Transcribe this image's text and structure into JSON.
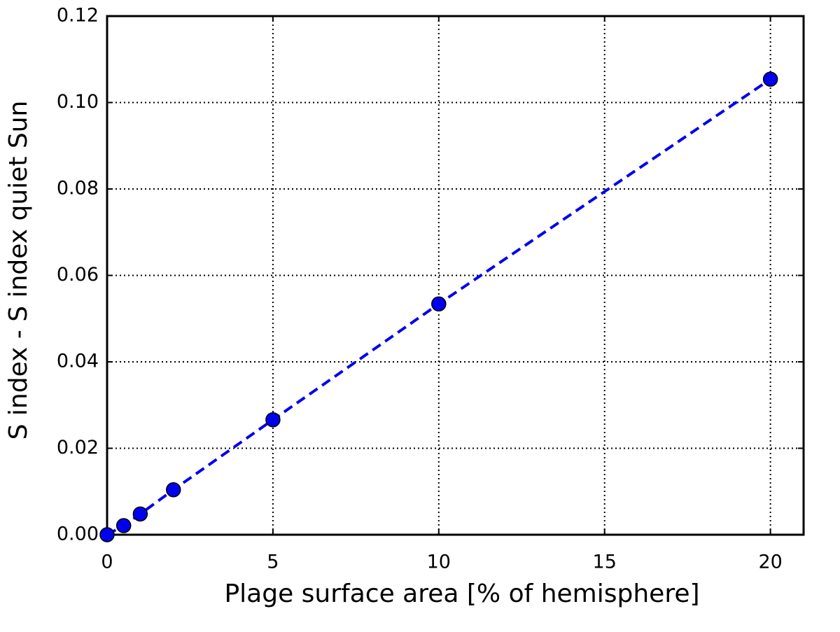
{
  "chart_data": {
    "type": "line",
    "x_label": "Plage surface area [% of hemisphere]",
    "y_label": "S index - S index quiet Sun",
    "x": [
      0,
      0.5,
      1,
      2,
      5,
      10,
      20
    ],
    "series": [
      {
        "color": "#0000ee",
        "values": [
          0,
          0.0021,
          0.0048,
          0.0104,
          0.0266,
          0.0534,
          0.1054
        ]
      }
    ],
    "line_style": "dashed",
    "marker": "circle",
    "xlim": [
      0,
      21
    ],
    "xticks": [
      0,
      5,
      10,
      15,
      20
    ],
    "ylim": [
      0,
      0.12
    ],
    "yticks": [
      {
        "value": 0,
        "label": "0.00"
      },
      0.02,
      0.04,
      0.06,
      0.08,
      {
        "value": 0.1,
        "label": "0.10"
      },
      0.12
    ],
    "grid": true
  }
}
